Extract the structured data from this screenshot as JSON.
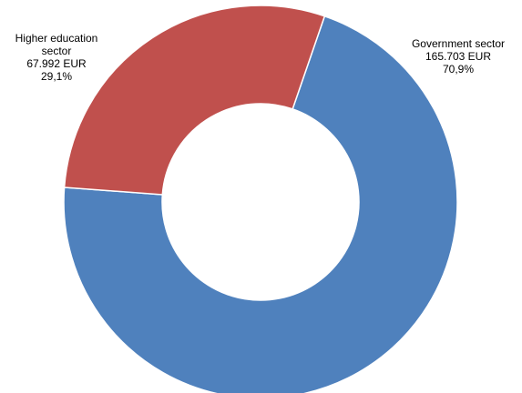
{
  "chart_data": {
    "type": "pie",
    "donut": true,
    "start_angle_deg": 19,
    "slices": [
      {
        "name": "Government sector",
        "value": 165703,
        "value_label": "165.703 EUR",
        "percent_label": "70,9%",
        "color": "#4F81BD"
      },
      {
        "name": "Higher education sector",
        "name_lines": [
          "Higher education",
          "sector"
        ],
        "value": 67992,
        "value_label": "67.992 EUR",
        "percent_label": "29,1%",
        "color": "#C0504D"
      }
    ],
    "legend": "none"
  }
}
